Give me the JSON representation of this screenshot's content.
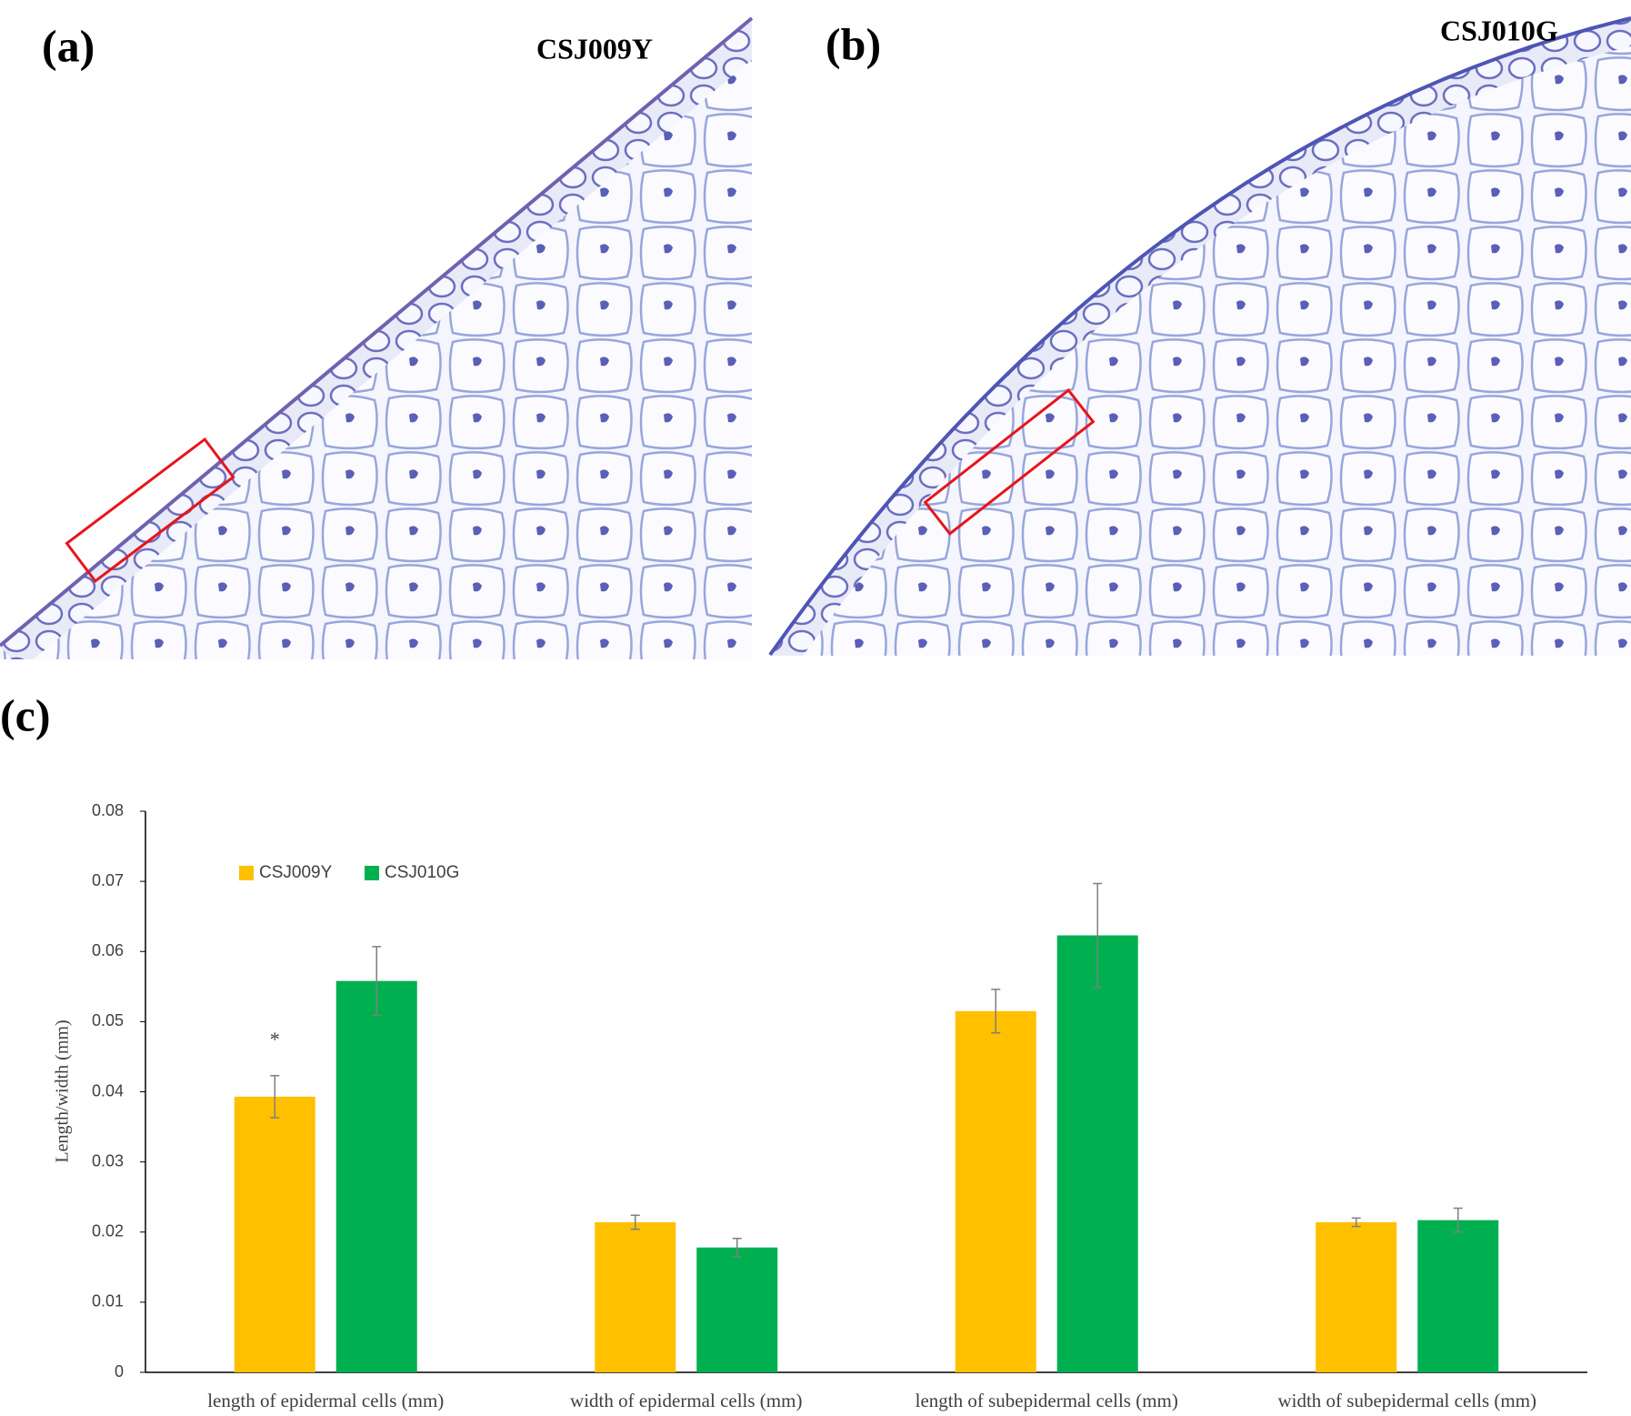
{
  "panels": [
    {
      "label": "(a)",
      "sample": "CSJ009Y"
    },
    {
      "label": "(b)",
      "sample": "CSJ010G"
    }
  ],
  "panel_c_label": "(c)",
  "chart_data": {
    "type": "bar",
    "y_label": "Length/width (mm)",
    "categories": [
      "length of epidermal cells (mm)",
      "width of epidermal cells (mm)",
      "length of subepidermal cells (mm)",
      "width of subepidermal cells (mm)"
    ],
    "series": [
      {
        "name": "CSJ009Y",
        "color": "#ffc000",
        "values": [
          0.0393,
          0.0214,
          0.0515,
          0.0214
        ],
        "errors": [
          0.003,
          0.001,
          0.0031,
          0.0006
        ]
      },
      {
        "name": "CSJ010G",
        "color": "#00b050",
        "values": [
          0.0558,
          0.0178,
          0.0623,
          0.0217
        ],
        "errors": [
          0.0049,
          0.0013,
          0.0074,
          0.0017
        ]
      }
    ],
    "annotation": "*",
    "ylim": [
      0,
      0.08
    ],
    "yticks": [
      0,
      0.01,
      0.02,
      0.03,
      0.04,
      0.05,
      0.06,
      0.07,
      0.08
    ],
    "legend": "upper left"
  }
}
